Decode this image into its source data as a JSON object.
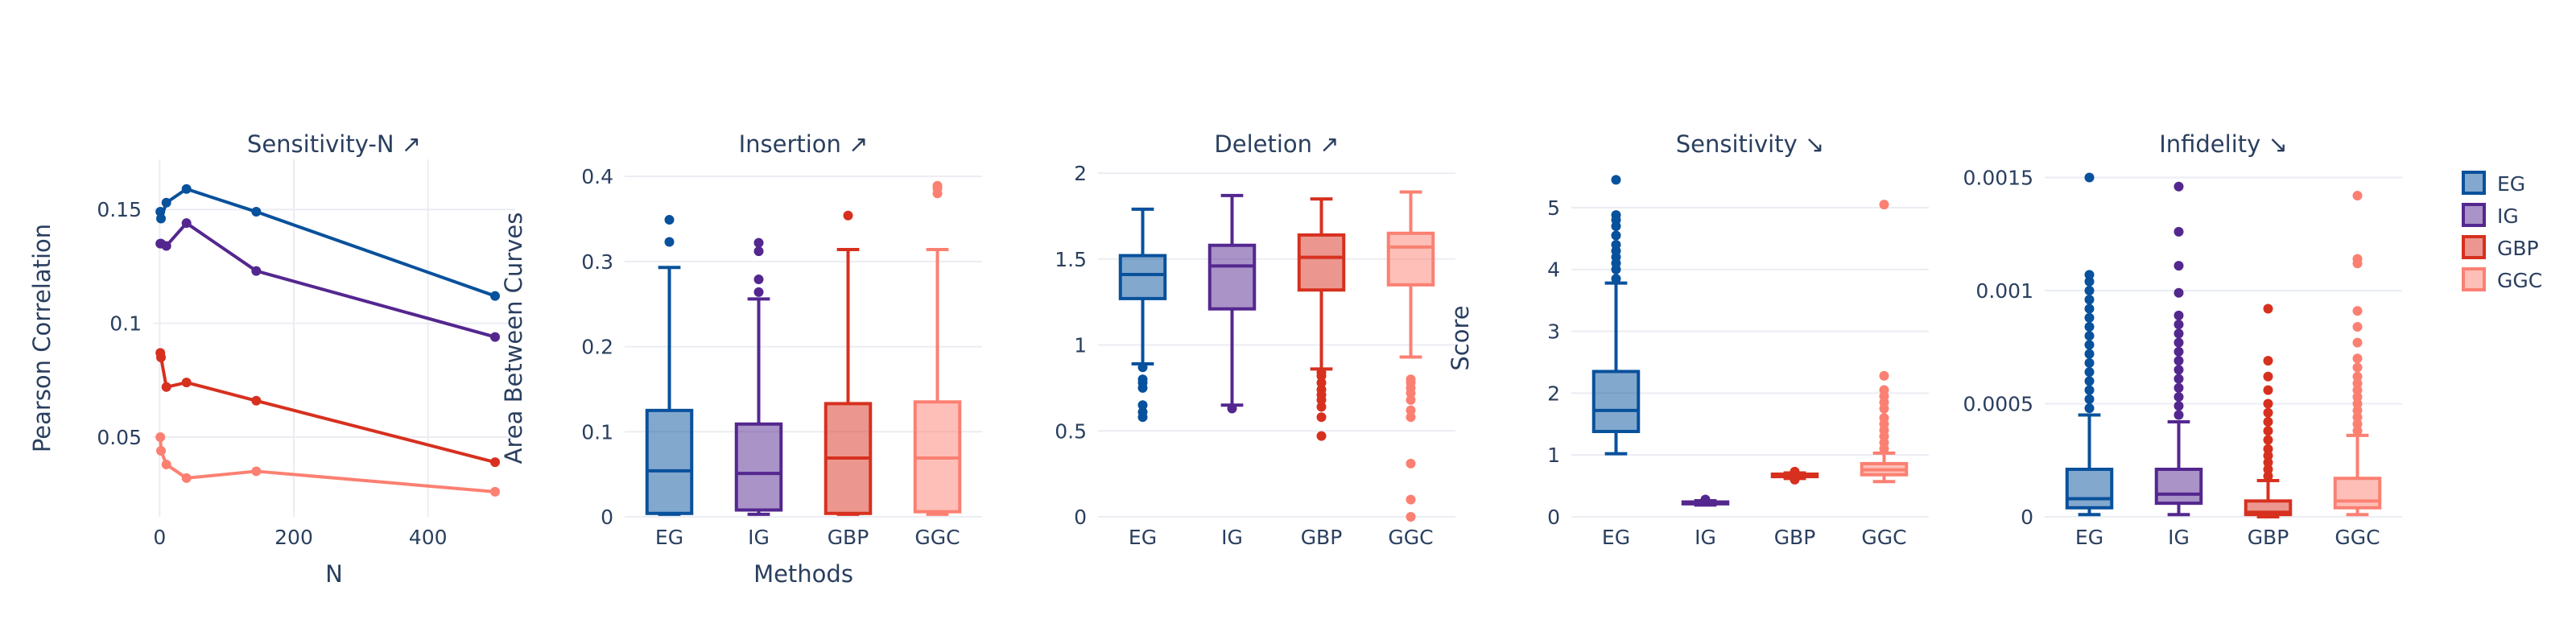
{
  "colors": {
    "EG": "#08519c",
    "IG": "#54278f",
    "GBP": "#d7301f",
    "GGC": "#fb8072",
    "text": "#2a3f5f",
    "grid": "#ebedf3"
  },
  "legend": {
    "placement": "right",
    "items": [
      "EG",
      "IG",
      "GBP",
      "GGC"
    ]
  },
  "chart_data": [
    {
      "type": "line",
      "title": "Sensitivity-N ↗",
      "xlabel": "N",
      "ylabel": "Pearson Correlation",
      "xlim": [
        -10,
        530
      ],
      "ylim": [
        0.015,
        0.172
      ],
      "xticks": [
        0,
        200,
        400
      ],
      "xtick_labels": [
        "0",
        "200",
        "400"
      ],
      "yticks": [
        0.05,
        0.1,
        0.15
      ],
      "ytick_labels": [
        "0.05",
        "0.1",
        "0.15"
      ],
      "grid": true,
      "series": [
        {
          "name": "EG",
          "x": [
            1,
            2,
            10,
            40,
            144,
            500
          ],
          "y": [
            0.149,
            0.146,
            0.153,
            0.159,
            0.149,
            0.112
          ]
        },
        {
          "name": "IG",
          "x": [
            1,
            2,
            10,
            40,
            144,
            500
          ],
          "y": [
            0.135,
            0.135,
            0.134,
            0.144,
            0.123,
            0.094
          ]
        },
        {
          "name": "GBP",
          "x": [
            1,
            2,
            10,
            40,
            144,
            500
          ],
          "y": [
            0.087,
            0.085,
            0.072,
            0.074,
            0.066,
            0.039
          ]
        },
        {
          "name": "GGC",
          "x": [
            1,
            2,
            10,
            40,
            144,
            500
          ],
          "y": [
            0.05,
            0.044,
            0.038,
            0.032,
            0.035,
            0.026
          ]
        }
      ]
    },
    {
      "type": "box",
      "title": "Insertion ↗",
      "xlabel": "Methods",
      "ylabel": "Area Between Curves",
      "categories": [
        "EG",
        "IG",
        "GBP",
        "GGC"
      ],
      "ylim": [
        0,
        0.42
      ],
      "yticks": [
        0,
        0.1,
        0.2,
        0.3,
        0.4
      ],
      "ytick_labels": [
        "0",
        "0.1",
        "0.2",
        "0.3",
        "0.4"
      ],
      "boxes": [
        {
          "name": "EG",
          "min": 0.003,
          "q1": 0.004,
          "median": 0.054,
          "q3": 0.125,
          "max": 0.293,
          "outliers": [
            0.323,
            0.349
          ]
        },
        {
          "name": "IG",
          "min": 0.003,
          "q1": 0.008,
          "median": 0.051,
          "q3": 0.109,
          "max": 0.256,
          "outliers": [
            0.264,
            0.279,
            0.312,
            0.322
          ]
        },
        {
          "name": "GBP",
          "min": 0.003,
          "q1": 0.004,
          "median": 0.069,
          "q3": 0.133,
          "max": 0.314,
          "outliers": [
            0.354
          ]
        },
        {
          "name": "GGC",
          "min": 0.003,
          "q1": 0.006,
          "median": 0.069,
          "q3": 0.135,
          "max": 0.314,
          "outliers": [
            0.38,
            0.386,
            0.389
          ]
        }
      ]
    },
    {
      "type": "box",
      "title": "Deletion ↗",
      "xlabel": "",
      "ylabel": "",
      "categories": [
        "EG",
        "IG",
        "GBP",
        "GGC"
      ],
      "ylim": [
        0,
        2.08
      ],
      "yticks": [
        0,
        0.5,
        1,
        1.5,
        2
      ],
      "ytick_labels": [
        "0",
        "0.5",
        "1",
        "1.5",
        "2"
      ],
      "boxes": [
        {
          "name": "EG",
          "min": 0.89,
          "q1": 1.27,
          "median": 1.41,
          "q3": 1.52,
          "max": 1.79,
          "outliers": [
            0.58,
            0.61,
            0.65,
            0.75,
            0.78,
            0.8,
            0.87
          ]
        },
        {
          "name": "IG",
          "min": 0.65,
          "q1": 1.21,
          "median": 1.46,
          "q3": 1.58,
          "max": 1.87,
          "outliers": [
            0.63
          ]
        },
        {
          "name": "GBP",
          "min": 0.86,
          "q1": 1.32,
          "median": 1.51,
          "q3": 1.64,
          "max": 1.85,
          "outliers": [
            0.47,
            0.58,
            0.64,
            0.68,
            0.71,
            0.74,
            0.78,
            0.82,
            0.84
          ]
        },
        {
          "name": "GGC",
          "min": 0.93,
          "q1": 1.35,
          "median": 1.57,
          "q3": 1.65,
          "max": 1.89,
          "outliers": [
            0.0,
            0.1,
            0.31,
            0.58,
            0.62,
            0.68,
            0.72,
            0.75,
            0.78,
            0.8
          ]
        }
      ]
    },
    {
      "type": "box",
      "title": "Sensitivity ↘",
      "xlabel": "",
      "ylabel": "Score",
      "categories": [
        "EG",
        "IG",
        "GBP",
        "GGC"
      ],
      "ylim": [
        0,
        5.78
      ],
      "yticks": [
        0,
        1,
        2,
        3,
        4,
        5
      ],
      "ytick_labels": [
        "0",
        "1",
        "2",
        "3",
        "4",
        "5"
      ],
      "boxes": [
        {
          "name": "EG",
          "min": 1.02,
          "q1": 1.38,
          "median": 1.72,
          "q3": 2.35,
          "max": 3.78,
          "outliers": [
            3.85,
            4.0,
            4.1,
            4.2,
            4.3,
            4.4,
            4.55,
            4.7,
            4.8,
            4.88,
            5.45
          ]
        },
        {
          "name": "IG",
          "min": 0.19,
          "q1": 0.21,
          "median": 0.22,
          "q3": 0.24,
          "max": 0.26,
          "outliers": [
            0.28
          ]
        },
        {
          "name": "GBP",
          "min": 0.62,
          "q1": 0.65,
          "median": 0.67,
          "q3": 0.69,
          "max": 0.71,
          "outliers": [
            0.6,
            0.73
          ]
        },
        {
          "name": "GGC",
          "min": 0.57,
          "q1": 0.68,
          "median": 0.76,
          "q3": 0.86,
          "max": 1.03,
          "outliers": [
            1.1,
            1.2,
            1.3,
            1.4,
            1.5,
            1.6,
            1.75,
            1.85,
            1.95,
            2.05,
            2.28,
            5.05
          ]
        }
      ]
    },
    {
      "type": "box",
      "title": "Infidelity ↘",
      "xlabel": "",
      "ylabel": "",
      "categories": [
        "EG",
        "IG",
        "GBP",
        "GGC"
      ],
      "ylim": [
        0,
        0.00158
      ],
      "yticks": [
        0,
        0.0005,
        0.001,
        0.0015
      ],
      "ytick_labels": [
        "0",
        "0.0005",
        "0.001",
        "0.0015"
      ],
      "boxes": [
        {
          "name": "EG",
          "min": 1e-05,
          "q1": 4e-05,
          "median": 8e-05,
          "q3": 0.00021,
          "max": 0.00045,
          "outliers": [
            0.00048,
            0.00052,
            0.00056,
            0.0006,
            0.00064,
            0.00068,
            0.00072,
            0.00076,
            0.0008,
            0.00084,
            0.00088,
            0.00092,
            0.00096,
            0.001,
            0.00104,
            0.00107,
            0.0015
          ]
        },
        {
          "name": "IG",
          "min": 1e-05,
          "q1": 6e-05,
          "median": 0.0001,
          "q3": 0.00021,
          "max": 0.00042,
          "outliers": [
            0.00045,
            0.00049,
            0.00053,
            0.00057,
            0.00061,
            0.00065,
            0.00069,
            0.00073,
            0.00077,
            0.00081,
            0.00085,
            0.00089,
            0.00099,
            0.00111,
            0.00126,
            0.00146
          ]
        },
        {
          "name": "GBP",
          "min": 0.0,
          "q1": 1e-05,
          "median": 2e-05,
          "q3": 7e-05,
          "max": 0.00016,
          "outliers": [
            0.00018,
            0.00021,
            0.00024,
            0.00027,
            0.0003,
            0.00034,
            0.00038,
            0.00042,
            0.00046,
            0.0005,
            0.00056,
            0.00062,
            0.00069,
            0.00092
          ]
        },
        {
          "name": "GGC",
          "min": 1e-05,
          "q1": 4e-05,
          "median": 7e-05,
          "q3": 0.00017,
          "max": 0.00036,
          "outliers": [
            0.00038,
            0.00041,
            0.00044,
            0.00047,
            0.0005,
            0.00053,
            0.00056,
            0.00059,
            0.00062,
            0.00066,
            0.0007,
            0.00077,
            0.00084,
            0.00091,
            0.00112,
            0.00114,
            0.00142
          ]
        }
      ]
    }
  ]
}
